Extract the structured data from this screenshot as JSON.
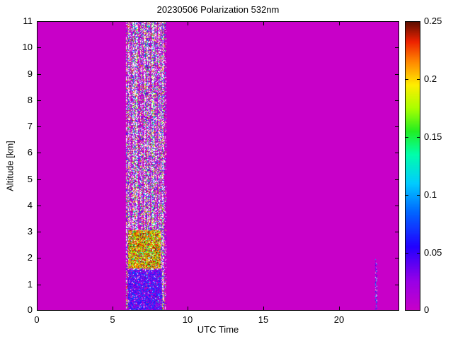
{
  "figure": {
    "background_color": "#ffffff",
    "axis_color": "#000000"
  },
  "chart_data": {
    "type": "heatmap",
    "title": "20230506 Polarization 532nm",
    "xlabel": "UTC Time",
    "ylabel": "Altitude [km]",
    "xlim": [
      0,
      24
    ],
    "ylim": [
      0,
      11
    ],
    "grid": false,
    "xticks": {
      "values": [
        0,
        5,
        10,
        15,
        20
      ],
      "labels": [
        "0",
        "5",
        "10",
        "15",
        "20"
      ]
    },
    "yticks": {
      "values": [
        0,
        1,
        2,
        3,
        4,
        5,
        6,
        7,
        8,
        9,
        10,
        11
      ],
      "labels": [
        "0",
        "1",
        "2",
        "3",
        "4",
        "5",
        "6",
        "7",
        "8",
        "9",
        "10",
        "11"
      ]
    },
    "colorbar": {
      "position": "right",
      "min": 0,
      "max": 0.25,
      "tick_values": [
        0,
        0.05,
        0.1,
        0.15,
        0.2,
        0.25
      ],
      "tick_labels": [
        "0",
        "0.05",
        "0.1",
        "0.15",
        "0.2",
        "0.25"
      ],
      "stops": [
        {
          "pos": 0.0,
          "color": "#c800c8"
        },
        {
          "pos": 0.1,
          "color": "#9900e6"
        },
        {
          "pos": 0.22,
          "color": "#2200ff"
        },
        {
          "pos": 0.34,
          "color": "#0066ff"
        },
        {
          "pos": 0.44,
          "color": "#00ccff"
        },
        {
          "pos": 0.54,
          "color": "#00ffaa"
        },
        {
          "pos": 0.62,
          "color": "#22ee22"
        },
        {
          "pos": 0.7,
          "color": "#aaff00"
        },
        {
          "pos": 0.78,
          "color": "#ffee00"
        },
        {
          "pos": 0.86,
          "color": "#ff8800"
        },
        {
          "pos": 0.93,
          "color": "#ee2200"
        },
        {
          "pos": 1.0,
          "color": "#5a0e00"
        }
      ]
    },
    "background_value": 0,
    "seed": 20230506,
    "regions": [
      {
        "name": "noise-band",
        "x_range": [
          5.92,
          8.45
        ],
        "y_range": [
          0,
          11
        ],
        "fill_probability": 0.5,
        "white_probability": 0.34,
        "value_range": [
          0,
          0.25
        ],
        "value_bias": "mixed",
        "column_striping": true
      },
      {
        "name": "depolarization-layer",
        "x_range": [
          6.05,
          8.2
        ],
        "y_range": [
          1.6,
          3.05
        ],
        "fill_probability": 0.9,
        "white_probability": 0.04,
        "value_range": [
          0.1,
          0.25
        ],
        "value_bias": "high",
        "column_striping": false
      },
      {
        "name": "boundary-layer",
        "x_range": [
          6.05,
          8.3
        ],
        "y_range": [
          0,
          1.55
        ],
        "fill_probability": 0.93,
        "white_probability": 0.03,
        "value_range": [
          0.005,
          0.09
        ],
        "value_bias": "mixed",
        "column_striping": false
      },
      {
        "name": "post-band-dotted-column",
        "x_range": [
          8.45,
          8.58
        ],
        "y_range": [
          0,
          11
        ],
        "fill_probability": 0.18,
        "white_probability": 0.1,
        "value_range": [
          0,
          0.25
        ],
        "value_bias": "mixed",
        "column_striping": false
      },
      {
        "name": "late-thin-feature",
        "x_range": [
          22.42,
          22.56
        ],
        "y_range": [
          0,
          1.95
        ],
        "fill_probability": 0.5,
        "white_probability": 0.04,
        "value_range": [
          0.005,
          0.12
        ],
        "value_bias": "mixed",
        "column_striping": false
      }
    ]
  }
}
